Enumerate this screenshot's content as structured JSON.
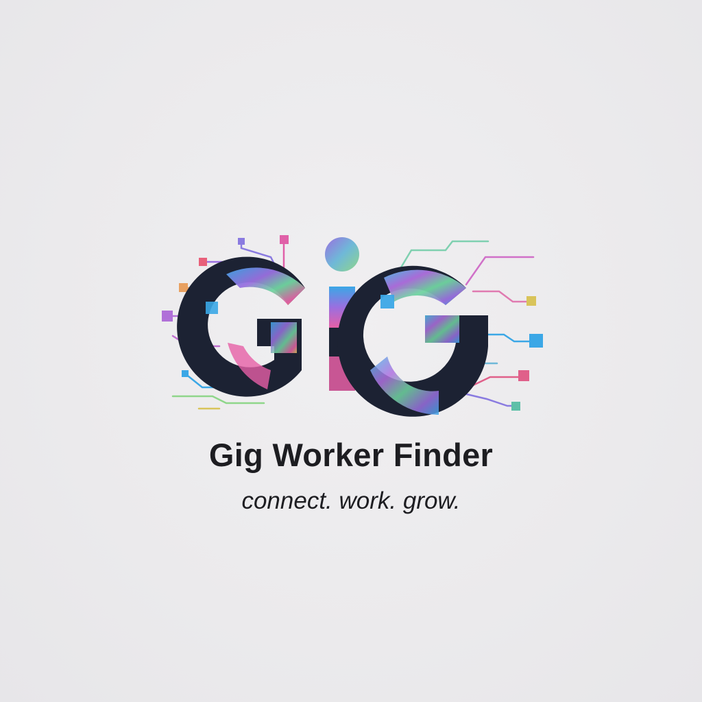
{
  "logo": {
    "brand_name": "Gig Worker Finder",
    "tagline": "connect. work. grow.",
    "colors": {
      "background": "#ebeaec",
      "text": "#1d1d21",
      "letter_dark": "#1c2233",
      "gradient_blue": "#3ba7e6",
      "gradient_purple": "#9a6fe0",
      "gradient_pink": "#e65fa6",
      "gradient_green": "#6fd6a0",
      "gradient_yellow": "#d9c45a"
    },
    "icon": "circuit-gig-monogram-icon"
  }
}
